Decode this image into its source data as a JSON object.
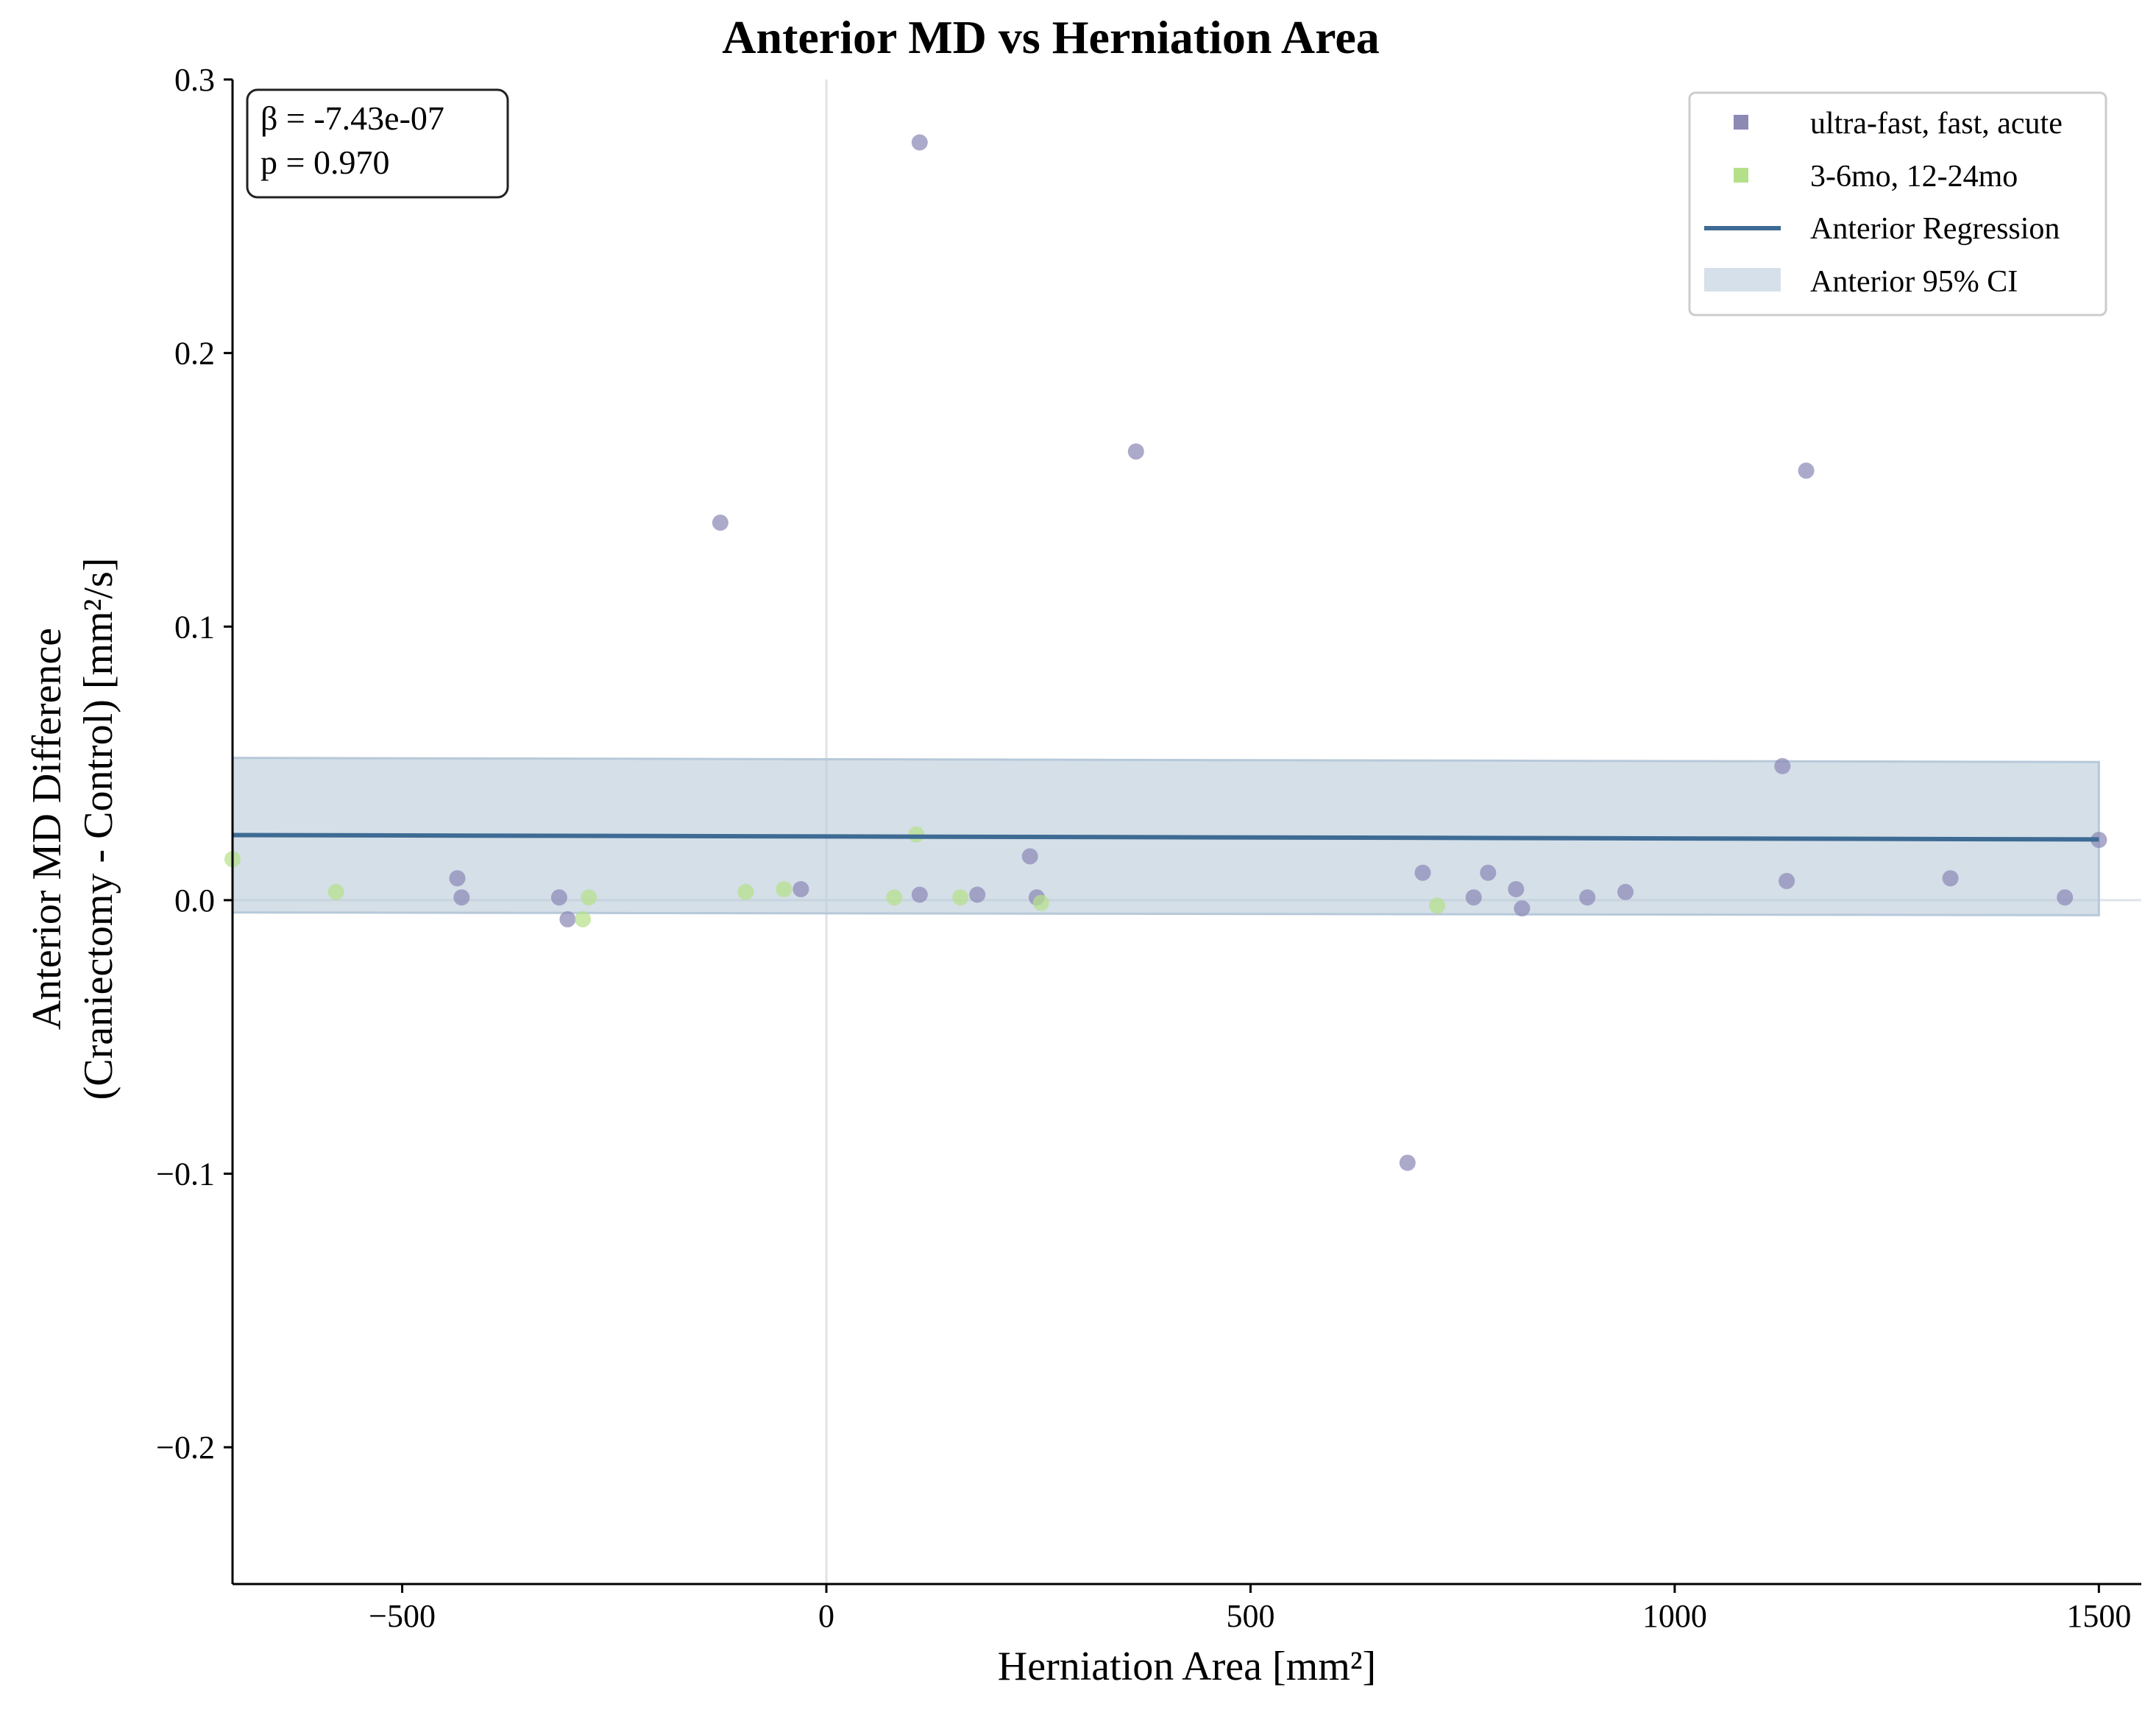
{
  "chart_data": {
    "type": "scatter",
    "title": "Anterior MD vs Herniation Area",
    "xlabel": "Herniation Area [mm²]",
    "ylabel_lines": [
      "Anterior MD Difference",
      "(Craniectomy - Control) [mm²/s]"
    ],
    "xlim": [
      -700,
      1550
    ],
    "ylim": [
      -0.25,
      0.3
    ],
    "x_ticks": [
      {
        "value": -500,
        "label": "−500"
      },
      {
        "value": 0,
        "label": "0"
      },
      {
        "value": 500,
        "label": "500"
      },
      {
        "value": 1000,
        "label": "1000"
      },
      {
        "value": 1500,
        "label": "1500"
      }
    ],
    "y_ticks": [
      {
        "value": 0.3,
        "label": "0.3"
      },
      {
        "value": 0.2,
        "label": "0.2"
      },
      {
        "value": 0.1,
        "label": "0.1"
      },
      {
        "value": 0.0,
        "label": "0.0"
      },
      {
        "value": -0.1,
        "label": "−0.1"
      },
      {
        "value": -0.2,
        "label": "−0.2"
      }
    ],
    "reference_lines": {
      "x": 0,
      "y": 0
    },
    "stats_lines": [
      "β = -7.43e-07",
      "p = 0.970"
    ],
    "legend_position": "top-right",
    "legend": [
      {
        "label": "ultra-fast, fast, acute",
        "kind": "marker",
        "color": "#8c89b5"
      },
      {
        "label": "3-6mo, 12-24mo",
        "kind": "marker",
        "color": "#b5e08a"
      },
      {
        "label": "Anterior Regression",
        "kind": "line",
        "color": "#3e6b94"
      },
      {
        "label": "Anterior 95% CI",
        "kind": "band",
        "color": "#d5e0ea"
      }
    ],
    "regression": {
      "x_range": [
        -700,
        1500
      ],
      "y_start": 0.0238,
      "y_end": 0.0222,
      "ci_lower": [
        -0.0045,
        -0.0055
      ],
      "ci_upper": [
        0.052,
        0.0505
      ],
      "color": "#3e6b94",
      "band_color": "#b7c9d9"
    },
    "series": [
      {
        "name": "ultra-fast, fast, acute",
        "color": "#8c89b5",
        "points": [
          [
            110,
            0.277
          ],
          [
            365,
            0.164
          ],
          [
            -125,
            0.138
          ],
          [
            1155,
            0.157
          ],
          [
            1127,
            0.049
          ],
          [
            -435,
            0.008
          ],
          [
            -430,
            0.001
          ],
          [
            -315,
            0.001
          ],
          [
            -305,
            -0.007
          ],
          [
            -30,
            0.004
          ],
          [
            110,
            0.002
          ],
          [
            178,
            0.002
          ],
          [
            240,
            0.016
          ],
          [
            248,
            0.001
          ],
          [
            685,
            -0.096
          ],
          [
            703,
            0.01
          ],
          [
            763,
            0.001
          ],
          [
            780,
            0.01
          ],
          [
            813,
            0.004
          ],
          [
            820,
            -0.003
          ],
          [
            897,
            0.001
          ],
          [
            942,
            0.003
          ],
          [
            1132,
            0.007
          ],
          [
            1325,
            0.008
          ],
          [
            1460,
            0.001
          ],
          [
            1500,
            0.022
          ]
        ]
      },
      {
        "name": "3-6mo, 12-24mo",
        "color": "#b5e08a",
        "points": [
          [
            -700,
            0.015
          ],
          [
            -578,
            0.003
          ],
          [
            -287,
            -0.007
          ],
          [
            -280,
            0.001
          ],
          [
            -95,
            0.003
          ],
          [
            -50,
            0.004
          ],
          [
            80,
            0.001
          ],
          [
            106,
            0.024
          ],
          [
            158,
            0.001
          ],
          [
            253,
            -0.001
          ],
          [
            720,
            -0.002
          ]
        ]
      }
    ]
  }
}
